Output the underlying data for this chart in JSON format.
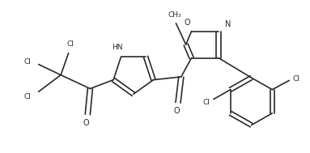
{
  "background_color": "#ffffff",
  "line_color": "#2a2a2a",
  "line_width": 1.2,
  "figsize": [
    3.83,
    1.89
  ],
  "dpi": 100,
  "xlim": [
    0,
    10
  ],
  "ylim": [
    0,
    5
  ]
}
